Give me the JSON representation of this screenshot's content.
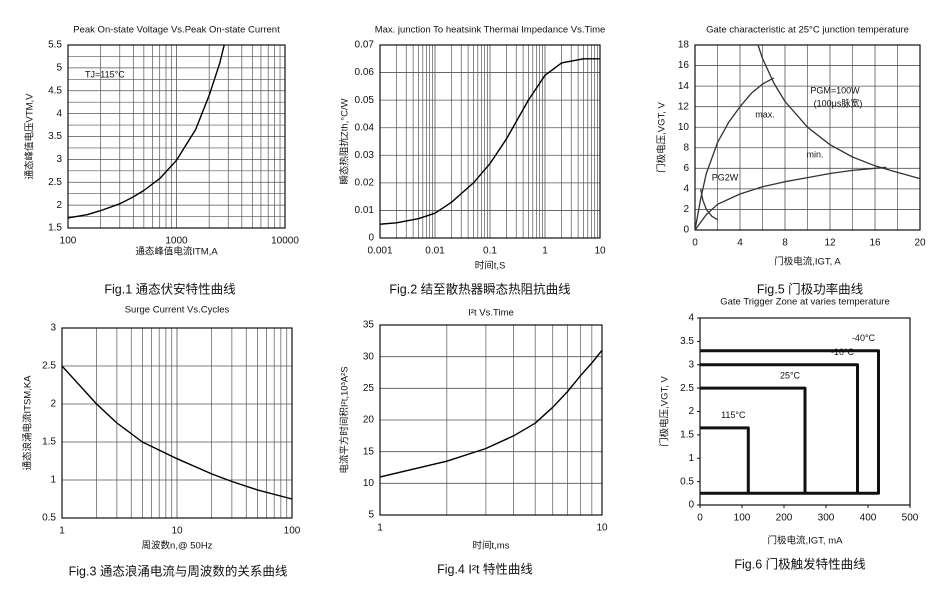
{
  "chart_data": [
    {
      "type": "line",
      "title": "Peak On-state Voltage Vs.Peak On-state Current",
      "caption": "Fig.1 通态伏安特性曲线",
      "xlabel": "通态峰值电流ITM,A",
      "ylabel": "通态峰值电压VTM,V",
      "annotations": [
        "TJ=115°C"
      ],
      "xlog": true,
      "xlim": [
        100,
        10000
      ],
      "xticks": [
        100,
        1000,
        10000
      ],
      "ylim": [
        1.5,
        5.5
      ],
      "yticks": [
        1.5,
        2,
        2.5,
        3,
        3.5,
        4,
        4.5,
        5,
        5.5
      ],
      "grid": true,
      "color": "#000000",
      "x": [
        100,
        150,
        200,
        300,
        400,
        500,
        700,
        1000,
        1500,
        2000,
        2500,
        2750
      ],
      "values": [
        1.72,
        1.79,
        1.88,
        2.03,
        2.18,
        2.32,
        2.58,
        2.98,
        3.65,
        4.4,
        5.1,
        5.5
      ]
    },
    {
      "type": "line",
      "title": "Max. junction To heatsink Thermai Impedance Vs.Time",
      "caption": "Fig.2 结至散热器瞬态热阻抗曲线",
      "xlabel": "时间t,S",
      "ylabel": "瞬态热阻抗Zth,°C/W",
      "xlog": true,
      "xlim": [
        0.001,
        10
      ],
      "xticks": [
        0.001,
        0.01,
        0.1,
        1,
        10
      ],
      "ylim": [
        0,
        0.07
      ],
      "yticks": [
        0,
        0.01,
        0.02,
        0.03,
        0.04,
        0.05,
        0.06,
        0.07
      ],
      "grid": true,
      "color": "#000000",
      "x": [
        0.001,
        0.002,
        0.005,
        0.01,
        0.02,
        0.05,
        0.1,
        0.2,
        0.5,
        1,
        2,
        5,
        10
      ],
      "values": [
        0.005,
        0.0055,
        0.007,
        0.009,
        0.013,
        0.02,
        0.027,
        0.036,
        0.05,
        0.059,
        0.0635,
        0.065,
        0.065
      ]
    },
    {
      "type": "line",
      "title": "Gate characteristic at 25°C junction temperature",
      "caption": "Fig.5 门极功率曲线",
      "xlabel": "门极电流,IGT, A",
      "ylabel": "门极电压,VGT, V",
      "annotations": [
        "(100μs脉宽)"
      ],
      "xlim": [
        0,
        20
      ],
      "xticks": [
        0,
        4,
        8,
        12,
        16,
        20
      ],
      "ylim": [
        0,
        18
      ],
      "yticks": [
        0,
        2,
        4,
        6,
        8,
        10,
        12,
        14,
        16,
        18
      ],
      "grid": true,
      "series": [
        {
          "name": "max.",
          "color": "#333333",
          "x": [
            0,
            0.5,
            1,
            2,
            3,
            4,
            5,
            6,
            7
          ],
          "values": [
            0,
            3,
            5.5,
            8.5,
            10.5,
            12,
            13.3,
            14.2,
            14.8
          ]
        },
        {
          "name": "min.",
          "color": "#333333",
          "x": [
            0,
            1,
            2,
            4,
            6,
            8,
            10,
            12,
            14,
            16,
            17
          ],
          "values": [
            0,
            1.5,
            2.5,
            3.5,
            4.2,
            4.7,
            5.1,
            5.5,
            5.8,
            6,
            6.1
          ]
        },
        {
          "name": "PGM=100W",
          "color": "#333333",
          "x": [
            5.6,
            6,
            7,
            8,
            10,
            12,
            14,
            16,
            18,
            20
          ],
          "values": [
            18,
            16.7,
            14.3,
            12.5,
            10,
            8.3,
            7.1,
            6.25,
            5.6,
            5
          ]
        },
        {
          "name": "PG2W",
          "color": "#333333",
          "x": [
            0.5,
            0.7,
            1,
            1.5,
            2
          ],
          "values": [
            4,
            2.9,
            2,
            1.33,
            1
          ]
        }
      ]
    },
    {
      "type": "line",
      "title": "Surge Current Vs.Cycles",
      "caption": "Fig.3 通态浪涌电流与周波数的关系曲线",
      "xlabel": "周波数n,@ 50Hz",
      "ylabel": "通态浪涌电流ITSM,KA",
      "xlog": true,
      "xlim": [
        1,
        100
      ],
      "xticks": [
        1,
        10,
        100
      ],
      "ylim": [
        0.5,
        3
      ],
      "yticks": [
        0.5,
        1,
        1.5,
        2,
        2.5,
        3
      ],
      "grid": true,
      "color": "#000000",
      "x": [
        1,
        2,
        3,
        5,
        10,
        20,
        30,
        50,
        100
      ],
      "values": [
        2.5,
        2,
        1.75,
        1.5,
        1.28,
        1.08,
        0.98,
        0.87,
        0.75
      ]
    },
    {
      "type": "line",
      "title": "I²t Vs.Time",
      "caption": "Fig.4 I²t 特性曲线",
      "xlabel": "时间t,ms",
      "ylabel": "电流平方时间积I²t,10³A²S",
      "xlog": true,
      "xlim": [
        1,
        10
      ],
      "xticks": [
        1,
        10
      ],
      "ylim": [
        5,
        35
      ],
      "yticks": [
        5,
        10,
        15,
        20,
        25,
        30,
        35
      ],
      "grid": true,
      "color": "#000000",
      "x": [
        1,
        2,
        3,
        4,
        5,
        6,
        7,
        8,
        9,
        10
      ],
      "values": [
        11,
        13.5,
        15.5,
        17.5,
        19.5,
        22,
        24.5,
        27,
        29,
        31
      ]
    },
    {
      "type": "line",
      "title": "Gate Trigger Zone at varies temperature",
      "caption": "Fig.6 门极触发特性曲线",
      "xlabel": "门极电流,IGT, mA",
      "ylabel": "门极电压,VGT, V",
      "xlim": [
        0,
        500
      ],
      "xticks": [
        0,
        100,
        200,
        300,
        400,
        500
      ],
      "ylim": [
        0,
        4
      ],
      "yticks": [
        0,
        0.5,
        1,
        1.5,
        2,
        2.5,
        3,
        3.5,
        4
      ],
      "grid": false,
      "series": [
        {
          "name": "-40°C",
          "color": "#111111",
          "x": [
            0,
            425,
            425,
            0
          ],
          "values": [
            3.3,
            3.3,
            0.25,
            0.25
          ]
        },
        {
          "name": "-10°C",
          "color": "#111111",
          "x": [
            0,
            375,
            375
          ],
          "values": [
            3,
            3,
            0.25
          ]
        },
        {
          "name": "25°C",
          "color": "#111111",
          "x": [
            0,
            250,
            250
          ],
          "values": [
            2.5,
            2.5,
            0.25
          ]
        },
        {
          "name": "115°C",
          "color": "#111111",
          "x": [
            0,
            115,
            115
          ],
          "values": [
            1.65,
            1.65,
            0.25
          ]
        }
      ]
    }
  ]
}
